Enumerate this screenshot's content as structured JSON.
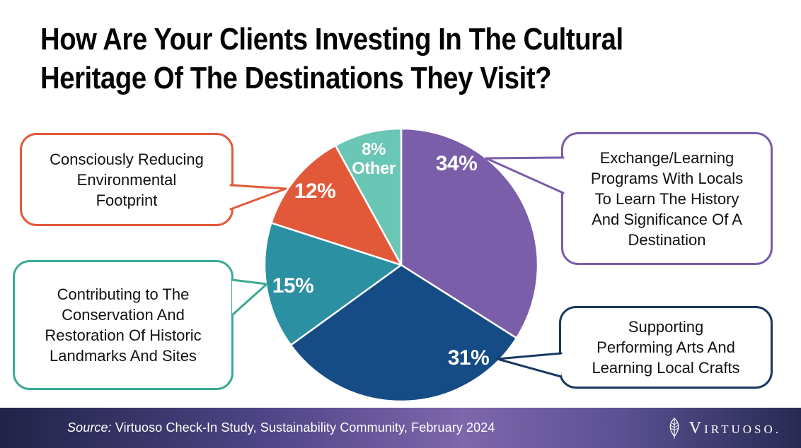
{
  "title": "How Are Your Clients Investing In The Cultural Heritage Of The Destinations They Visit?",
  "title_lines": [
    "How Are Your Clients Investing In The Cultural",
    "Heritage Of The Destinations They Visit?"
  ],
  "chart_data": {
    "type": "pie",
    "title": "How Are Your Clients Investing In The Cultural Heritage Of The Destinations They Visit?",
    "units": "%",
    "direction": "clockwise",
    "start_angle_deg": 0,
    "legend_position": "callout-bubbles",
    "slices": [
      {
        "label": "Exchange/Learning Programs With Locals To Learn The History And Significance Of A Destination",
        "value": 34,
        "display": "34%",
        "color": "#7b5ea9"
      },
      {
        "label": "Supporting Performing Arts And Learning Local Crafts",
        "value": 31,
        "display": "31%",
        "color": "#154c86"
      },
      {
        "label": "Contributing to The Conservation And Restoration Of Historic Landmarks And Sites",
        "value": 15,
        "display": "15%",
        "color": "#2b90a1"
      },
      {
        "label": "Consciously Reducing Environmental Footprint",
        "value": 12,
        "display": "12%",
        "color": "#e2593a"
      },
      {
        "label": "Other",
        "value": 8,
        "display": "8%",
        "display2": "Other",
        "color": "#6ac7b5"
      }
    ]
  },
  "callouts": [
    {
      "id": "environmental",
      "lines": [
        "Consciously Reducing",
        "Environmental",
        "Footprint"
      ],
      "border_color": "#e2593a"
    },
    {
      "id": "conservation",
      "lines": [
        "Contributing to The",
        "Conservation And",
        "Restoration Of Historic",
        "Landmarks And Sites"
      ],
      "border_color": "#3aa995"
    },
    {
      "id": "exchange",
      "lines": [
        "Exchange/Learning",
        "Programs With Locals",
        "To Learn The History",
        "And Significance Of A",
        "Destination"
      ],
      "border_color": "#7a5ca8"
    },
    {
      "id": "performing",
      "lines": [
        "Supporting",
        "Performing Arts And",
        "Learning Local Crafts"
      ],
      "border_color": "#17395f"
    }
  ],
  "footer": {
    "source_label": "Source:",
    "source_text": " Virtuoso Check-In Study, Sustainability Community, February 2024",
    "brand_initial": "V",
    "brand_rest": "IRTUOSO.",
    "background_left": "#212347",
    "background_mid": "#7e67ac"
  }
}
